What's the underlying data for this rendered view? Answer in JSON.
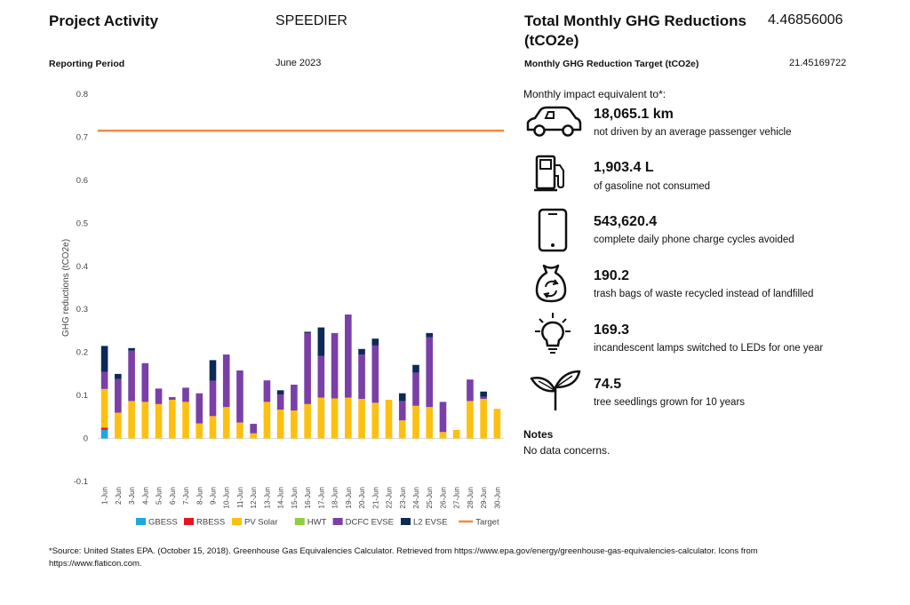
{
  "header": {
    "project_label": "Project Activity",
    "project_value": "SPEEDIER",
    "period_label": "Reporting Period",
    "period_value": "June 2023",
    "total_label": "Total Monthly GHG Reductions (tCO2e)",
    "total_value": "4.46856006",
    "target_label": "Monthly GHG Reduction Target (tCO2e)",
    "target_value": "21.45169722"
  },
  "equivalents": {
    "intro": "Monthly impact equivalent to*:",
    "items": [
      {
        "icon": "car-icon",
        "value": "18,065.1 km",
        "desc": "not driven by an average passenger vehicle"
      },
      {
        "icon": "gas-pump-icon",
        "value": "1,903.4 L",
        "desc": "of gasoline not consumed"
      },
      {
        "icon": "phone-icon",
        "value": "543,620.4",
        "desc": "complete daily phone charge cycles avoided"
      },
      {
        "icon": "recycle-bag-icon",
        "value": "190.2",
        "desc": "trash bags of waste recycled instead of landfilled"
      },
      {
        "icon": "lightbulb-icon",
        "value": "169.3",
        "desc": "incandescent lamps switched to LEDs for one year"
      },
      {
        "icon": "seedling-icon",
        "value": "74.5",
        "desc": "tree seedlings grown for 10 years"
      }
    ]
  },
  "notes": {
    "label": "Notes",
    "text": "No data concerns."
  },
  "footnote": "*Source: United States EPA. (October 15, 2018). Greenhouse Gas Equivalencies Calculator. Retrieved from https://www.epa.gov/energy/greenhouse-gas-equivalencies-calculator. Icons from https://www.flaticon.com.",
  "chart_data": {
    "type": "bar",
    "stacked": true,
    "ylabel": "GHG reductions (tCO2e)",
    "ylim": [
      -0.1,
      0.8
    ],
    "yticks": [
      "0.8",
      "0.7",
      "0.6",
      "0.5",
      "0.4",
      "0.3",
      "0.2",
      "0.1",
      "0",
      "-0.1"
    ],
    "grid": false,
    "legend": "bottom",
    "categories": [
      "1-Jun",
      "2-Jun",
      "3-Jun",
      "4-Jun",
      "5-Jun",
      "6-Jun",
      "7-Jun",
      "8-Jun",
      "9-Jun",
      "10-Jun",
      "11-Jun",
      "12-Jun",
      "13-Jun",
      "14-Jun",
      "15-Jun",
      "16-Jun",
      "17-Jun",
      "18-Jun",
      "19-Jun",
      "20-Jun",
      "21-Jun",
      "22-Jun",
      "23-Jun",
      "24-Jun",
      "25-Jun",
      "26-Jun",
      "27-Jun",
      "28-Jun",
      "29-Jun",
      "30-Jun"
    ],
    "series": [
      {
        "name": "GBESS",
        "color": "#1ea7e1",
        "values": [
          0.02,
          0,
          0,
          0,
          0,
          0,
          0,
          0,
          0,
          0,
          0,
          0,
          0,
          0,
          0,
          0,
          0,
          0,
          0,
          0,
          0,
          0,
          0,
          0,
          0,
          0,
          0,
          0,
          0,
          0
        ]
      },
      {
        "name": "RBESS",
        "color": "#e8141b",
        "values": [
          0.005,
          0,
          0,
          0,
          0,
          0,
          0,
          0,
          0,
          0,
          0,
          0,
          0,
          0,
          0,
          0,
          0,
          0,
          0,
          0,
          0,
          0,
          0,
          0,
          0,
          0,
          0,
          0,
          0,
          0
        ]
      },
      {
        "name": "PV Solar",
        "color": "#fdc010",
        "values": [
          0.09,
          0.06,
          0.087,
          0.085,
          0.08,
          0.09,
          0.085,
          0.035,
          0.052,
          0.073,
          0.037,
          0.012,
          0.085,
          0.067,
          0.065,
          0.08,
          0.095,
          0.093,
          0.095,
          0.092,
          0.083,
          0.09,
          0.042,
          0.076,
          0.073,
          0.015,
          0.02,
          0.087,
          0.092,
          0.069
        ]
      },
      {
        "name": "HWT",
        "color": "#8fce40",
        "values": [
          0,
          0,
          0,
          0,
          0,
          0,
          0,
          0,
          0,
          0,
          0,
          0,
          0,
          0,
          0,
          0,
          0,
          0,
          0,
          0,
          0,
          0,
          0,
          0,
          0,
          0,
          0,
          0,
          0,
          0
        ]
      },
      {
        "name": "DCFC EVSE",
        "color": "#7b3fa8",
        "values": [
          0.04,
          0.078,
          0.117,
          0.09,
          0.036,
          0.006,
          0.033,
          0.07,
          0.082,
          0.122,
          0.121,
          0.022,
          0.05,
          0.035,
          0.06,
          0.165,
          0.097,
          0.152,
          0.193,
          0.103,
          0.133,
          0,
          0.045,
          0.077,
          0.162,
          0.07,
          0,
          0.05,
          0.005,
          0
        ]
      },
      {
        "name": "L2 EVSE",
        "color": "#0d2a57",
        "values": [
          0.06,
          0.012,
          0.006,
          0,
          0,
          0,
          0,
          0,
          0.048,
          0,
          0,
          0,
          0,
          0.01,
          0,
          0.003,
          0.066,
          0,
          0,
          0.013,
          0.016,
          0,
          0.018,
          0.018,
          0.01,
          0,
          0,
          0,
          0.012,
          0
        ]
      }
    ],
    "target": {
      "name": "Target",
      "color": "#ef8b3e",
      "value": 0.715
    }
  }
}
